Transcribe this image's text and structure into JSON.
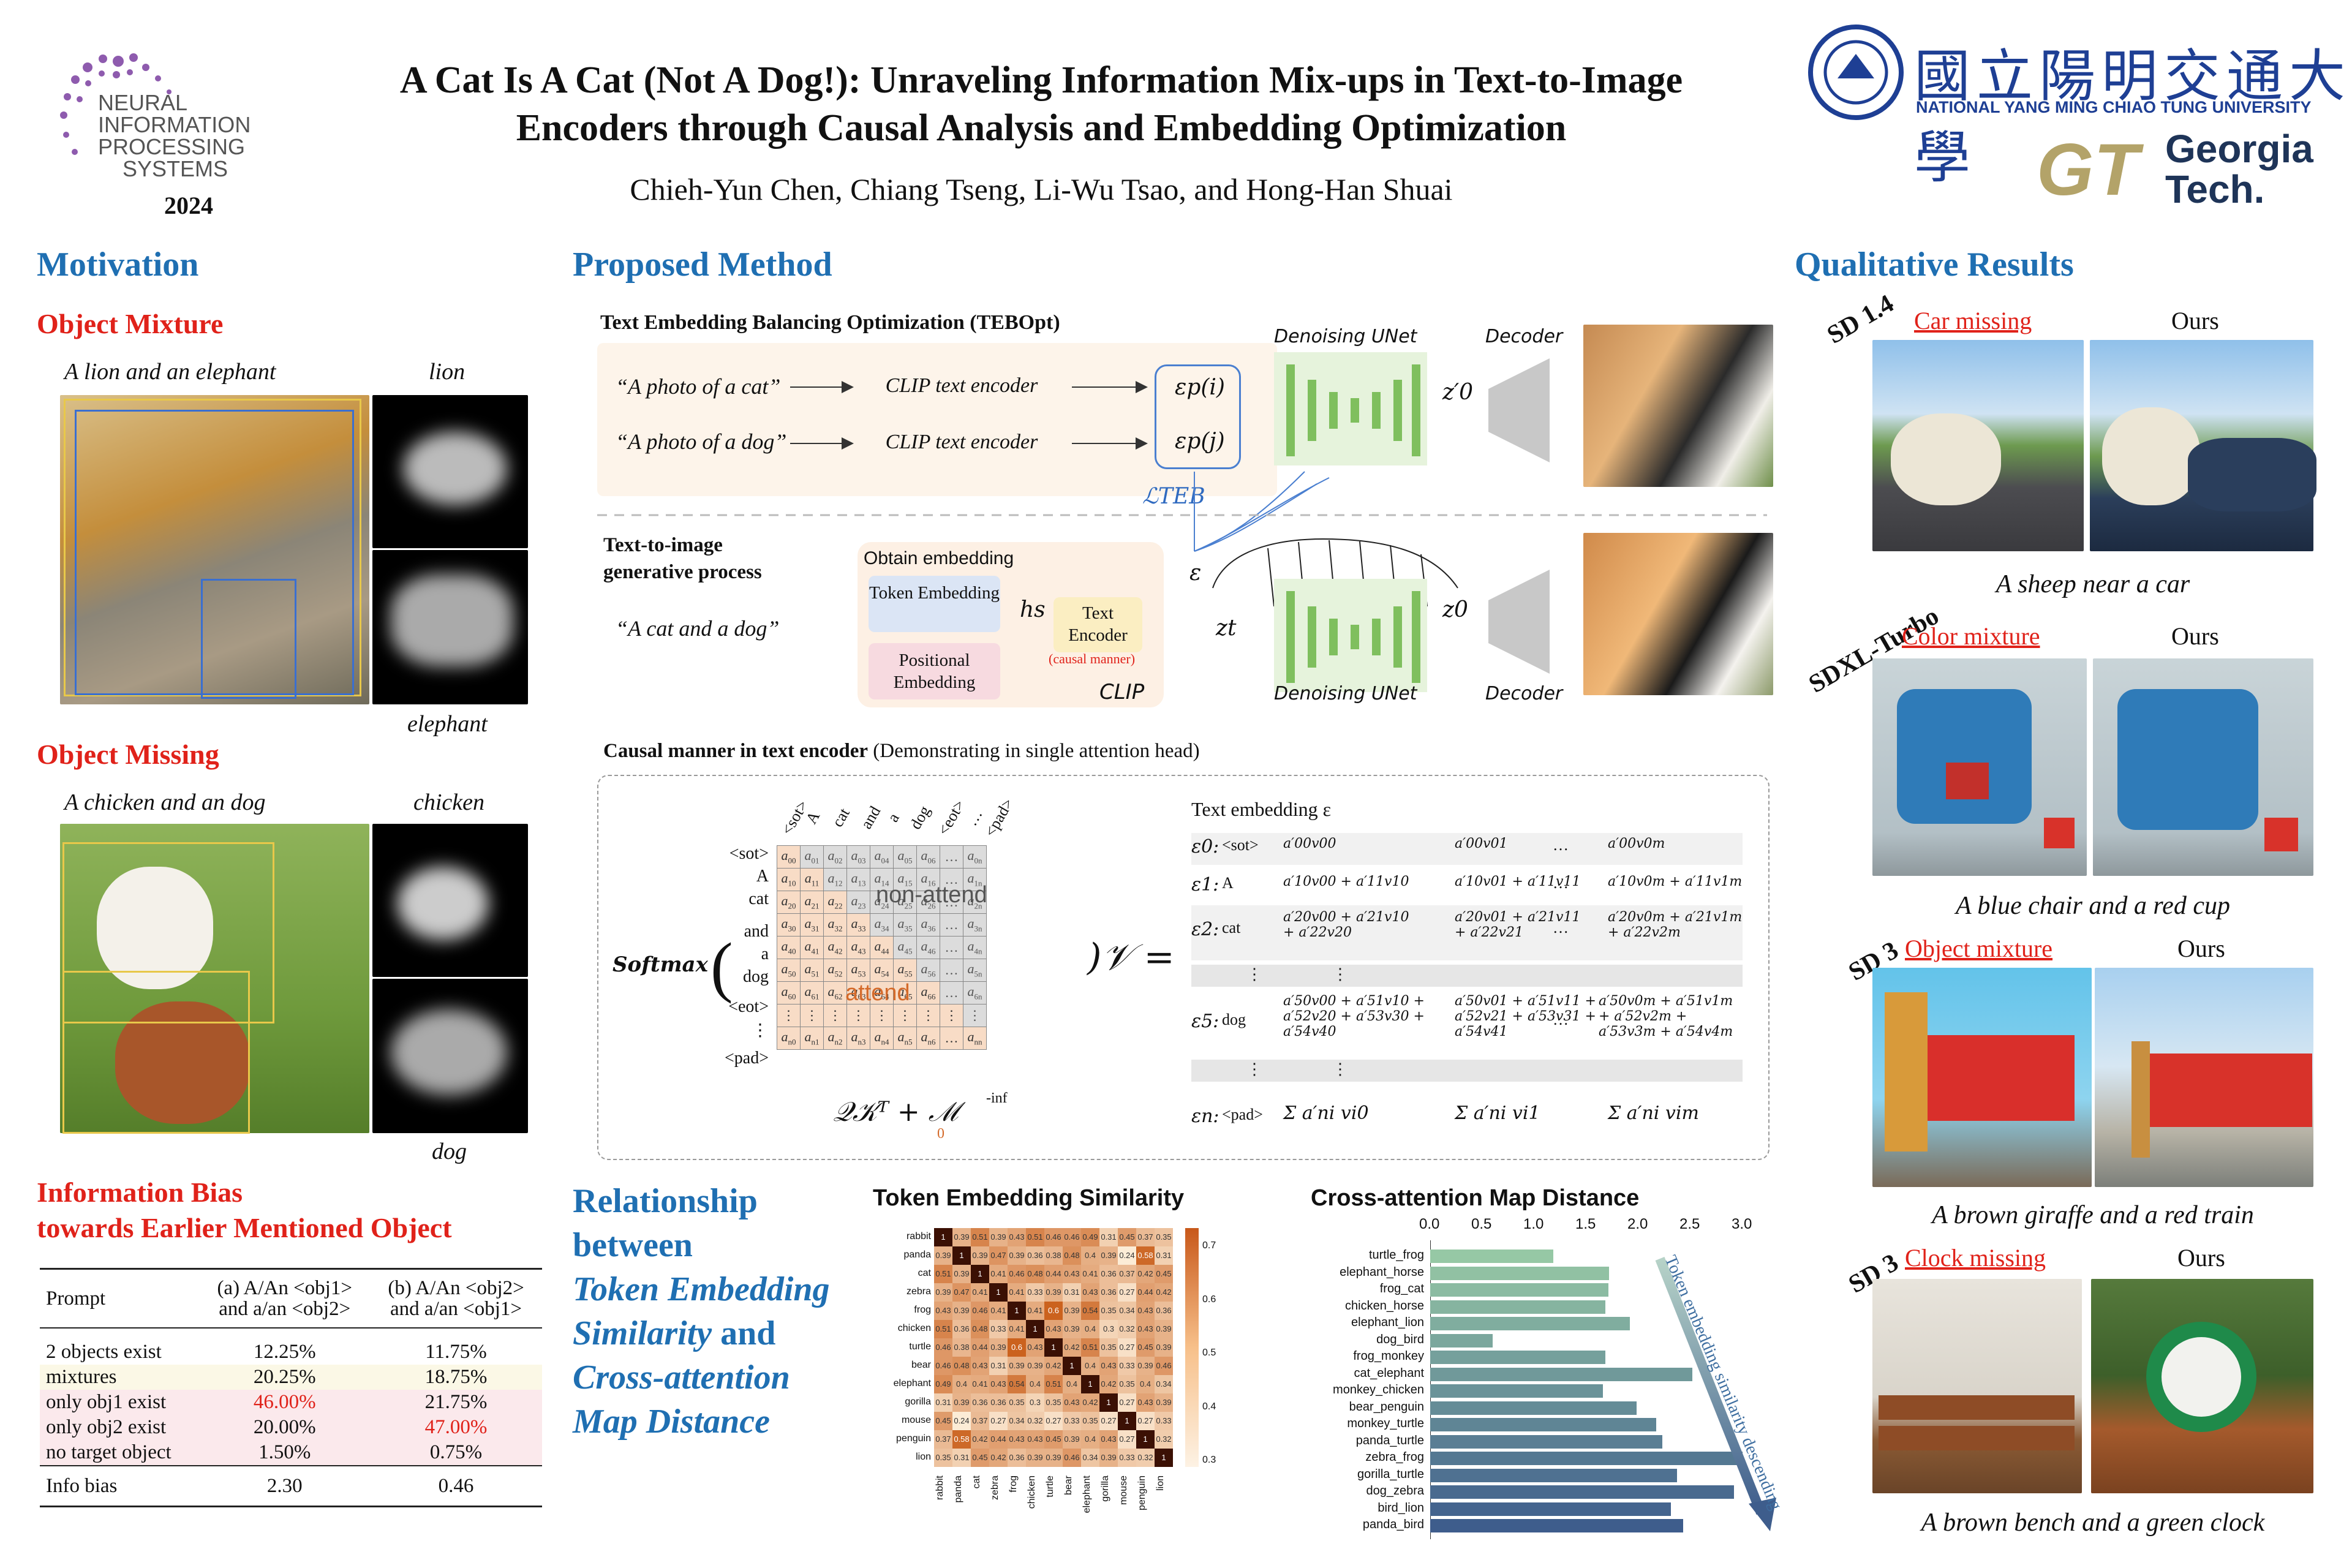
{
  "header": {
    "conf_line1": "NEURAL",
    "conf_line2": "INFORMATION",
    "conf_line3": "PROCESSING",
    "conf_line4": "SYSTEMS",
    "conf_year": "2024",
    "title_line1": "A Cat Is A Cat (Not A Dog!): Unraveling Information Mix-ups in Text-to-Image",
    "title_line2": "Encoders through Causal Analysis and Embedding Optimization",
    "authors": "Chieh-Yun Chen, Chiang Tseng, Li-Wu Tsao, and Hong-Han Shuai",
    "nycu_cjk": "國立陽明交通大學",
    "nycu_en": "NATIONAL YANG MING CHIAO TUNG UNIVERSITY",
    "gt_mark": "GT",
    "gt_line1": "Georgia",
    "gt_line2": "Tech."
  },
  "motivation": {
    "title": "Motivation",
    "mixture_title": "Object Mixture",
    "mixture_caption": "A lion and an elephant",
    "mixture_map1": "lion",
    "mixture_map2": "elephant",
    "missing_title": "Object Missing",
    "missing_caption": "A chicken and an dog",
    "missing_map1": "chicken",
    "missing_map2": "dog",
    "bias_title1": "Information Bias",
    "bias_title2": "towards Earlier Mentioned Object",
    "table": {
      "h0": "Prompt",
      "h1a": "(a) A/An <obj1>",
      "h1b": "and a/an <obj2>",
      "h2a": "(b) A/An <obj2>",
      "h2b": "and a/an <obj1>",
      "rows": [
        {
          "label": "2 objects exist",
          "a": "12.25%",
          "b": "11.75%"
        },
        {
          "label": "mixtures",
          "a": "20.25%",
          "b": "18.75%"
        },
        {
          "label": "only obj1 exist",
          "a": "46.00%",
          "b": "21.75%"
        },
        {
          "label": "only obj2 exist",
          "a": "20.00%",
          "b": "47.00%"
        },
        {
          "label": "no target object",
          "a": "1.50%",
          "b": "0.75%"
        }
      ],
      "bias_label": "Info bias",
      "bias_a": "2.30",
      "bias_b": "0.46"
    }
  },
  "method": {
    "title": "Proposed Method",
    "tebopt_title": "Text Embedding Balancing Optimization (TEBOpt)",
    "prompt_cat": "“A photo of  a cat”",
    "prompt_dog": "“A photo of a dog”",
    "clip_encoder": "CLIP text encoder",
    "eps_pi": "εp(i)",
    "eps_pj": "εp(j)",
    "loss": "ℒTEB",
    "unet": "Denoising UNet",
    "decoder": "Decoder",
    "z0_prime": "z′0",
    "gen_title1": "Text-to-image",
    "gen_title2": "generative process",
    "prompt_both": "“A cat and a dog”",
    "obtain_embedding": "Obtain embedding",
    "token_embedding": "Token Embedding",
    "positional_embedding": "Positional Embedding",
    "hs": "hs",
    "text_encoder": "Text Encoder",
    "causal_manner": "(causal manner)",
    "clip": "CLIP",
    "eps": "ε",
    "zt": "zt",
    "z0": "z0",
    "causal_title": "Causal manner in text encoder",
    "causal_sub": "(Demonstrating in single attention head)",
    "col_tokens": [
      "<sot>",
      "A",
      "cat",
      "and",
      "a",
      "dog",
      "<eot>",
      "…",
      "<pad>"
    ],
    "row_tokens": [
      "<sot>",
      "A",
      "cat",
      "and",
      "a",
      "dog",
      "<eot>",
      "⋮",
      "<pad>"
    ],
    "softmax": "Softmax",
    "non_attend": "non-attend",
    "attend": "attend",
    "qk_formula": "𝒬𝒦ᵀ + ℳ",
    "mask_inf": "-inf",
    "mask_zero": "0",
    "v_equals": ")𝒱 =",
    "text_embedding_label": "Text embedding  ε",
    "emb_rows": [
      {
        "eps": "ε0:",
        "tok": "<sot>",
        "c1": "a′00v00",
        "c2": "a′00v01",
        "c3": "a′00v0m"
      },
      {
        "eps": "ε1:",
        "tok": "A",
        "c1": "a′10v00 + a′11v10",
        "c2": "a′10v01 + a′11v11",
        "c3": "a′10v0m + a′11v1m"
      },
      {
        "eps": "ε2:",
        "tok": "cat",
        "c1": "a′20v00 + a′21v10 + a′22v20",
        "c2": "a′20v01 + a′21v11 + a′22v21",
        "c3": "a′20v0m + a′21v1m + a′22v2m"
      },
      {
        "eps": "ε5:",
        "tok": "dog",
        "c1": "a′50v00 + a′51v10 + a′52v20 + a′53v30 + a′54v40",
        "c2": "a′50v01 + a′51v11 + a′52v21 + a′53v31 + a′54v41",
        "c3": "a′50v0m + a′51v1m + a′52v2m + a′53v3m + a′54v4m"
      },
      {
        "eps": "εn:",
        "tok": "<pad>",
        "c1": "Σ a′ni vi0",
        "c2": "Σ a′ni vi1",
        "c3": "Σ a′ni vim"
      }
    ],
    "ellipsis": "…",
    "vdots": "⋮"
  },
  "relationship": {
    "line1": "Relationship",
    "line2": "between",
    "line3": "Token Embedding",
    "line4a": "Similarity",
    "line4b": " and",
    "line5": "Cross-attention",
    "line6": "Map Distance"
  },
  "heatmap": {
    "title": "Token Embedding Similarity",
    "labels": [
      "rabbit",
      "panda",
      "cat",
      "zebra",
      "frog",
      "chicken",
      "turtle",
      "bear",
      "elephant",
      "gorilla",
      "mouse",
      "penguin",
      "lion"
    ],
    "values": [
      [
        1,
        0.39,
        0.51,
        0.39,
        0.43,
        0.51,
        0.46,
        0.46,
        0.49,
        0.31,
        0.45,
        0.37,
        0.35
      ],
      [
        0.39,
        1,
        0.39,
        0.47,
        0.39,
        0.36,
        0.38,
        0.48,
        0.4,
        0.39,
        0.24,
        0.58,
        0.31
      ],
      [
        0.51,
        0.39,
        1,
        0.41,
        0.46,
        0.48,
        0.44,
        0.43,
        0.41,
        0.36,
        0.37,
        0.42,
        0.45
      ],
      [
        0.39,
        0.47,
        0.41,
        1,
        0.41,
        0.33,
        0.39,
        0.31,
        0.43,
        0.36,
        0.27,
        0.44,
        0.42
      ],
      [
        0.43,
        0.39,
        0.46,
        0.41,
        1,
        0.41,
        0.6,
        0.39,
        0.54,
        0.35,
        0.34,
        0.43,
        0.36
      ],
      [
        0.51,
        0.36,
        0.48,
        0.33,
        0.41,
        1,
        0.43,
        0.39,
        0.4,
        0.3,
        0.32,
        0.43,
        0.39
      ],
      [
        0.46,
        0.38,
        0.44,
        0.39,
        0.6,
        0.43,
        1,
        0.42,
        0.51,
        0.35,
        0.27,
        0.45,
        0.39
      ],
      [
        0.46,
        0.48,
        0.43,
        0.31,
        0.39,
        0.39,
        0.42,
        1,
        0.4,
        0.43,
        0.33,
        0.39,
        0.46
      ],
      [
        0.49,
        0.4,
        0.41,
        0.43,
        0.54,
        0.4,
        0.51,
        0.4,
        1,
        0.42,
        0.35,
        0.4,
        0.34
      ],
      [
        0.31,
        0.39,
        0.36,
        0.36,
        0.35,
        0.3,
        0.35,
        0.43,
        0.42,
        1,
        0.27,
        0.43,
        0.39
      ],
      [
        0.45,
        0.24,
        0.37,
        0.27,
        0.34,
        0.32,
        0.27,
        0.33,
        0.35,
        0.27,
        1,
        0.27,
        0.33
      ],
      [
        0.37,
        0.58,
        0.42,
        0.44,
        0.43,
        0.43,
        0.45,
        0.39,
        0.4,
        0.43,
        0.27,
        1,
        0.32
      ],
      [
        0.35,
        0.31,
        0.45,
        0.42,
        0.36,
        0.39,
        0.39,
        0.46,
        0.34,
        0.39,
        0.33,
        0.32,
        1
      ]
    ],
    "colorbar_ticks": [
      "0.7",
      "0.6",
      "0.5",
      "0.4",
      "0.3"
    ]
  },
  "chart_data": {
    "type": "bar",
    "title": "Cross-attention Map Distance",
    "orientation": "horizontal",
    "categories": [
      "turtle_frog",
      "elephant_horse",
      "frog_cat",
      "chicken_horse",
      "elephant_lion",
      "dog_bird",
      "frog_monkey",
      "cat_elephant",
      "monkey_chicken",
      "bear_penguin",
      "monkey_turtle",
      "panda_turtle",
      "zebra_frog",
      "gorilla_turtle",
      "dog_zebra",
      "bird_lion",
      "panda_bird"
    ],
    "values": [
      1.18,
      1.72,
      1.71,
      1.68,
      1.92,
      0.6,
      1.68,
      2.52,
      1.66,
      1.98,
      2.17,
      2.23,
      3.0,
      2.37,
      2.92,
      2.31,
      2.43
    ],
    "xticks": [
      "0.0",
      "0.5",
      "1.0",
      "1.5",
      "2.0",
      "2.5",
      "3.0"
    ],
    "xlim": [
      0,
      3.0
    ],
    "annotation": "Token embedding similarity descending"
  },
  "qualitative": {
    "title": "Qualitative Results",
    "ours": "Ours",
    "rows": [
      {
        "model": "SD 1.4",
        "issue": "Car missing",
        "caption": "A sheep near a car"
      },
      {
        "model": "SDXL-Turbo",
        "issue": "Color mixture",
        "caption": "A blue chair and a red cup"
      },
      {
        "model": "SD 3",
        "issue": "Object mixture",
        "caption": "A brown giraffe and a red train"
      },
      {
        "model": "SD 3",
        "issue": "Clock missing",
        "caption": "A brown bench and a green clock"
      }
    ]
  }
}
